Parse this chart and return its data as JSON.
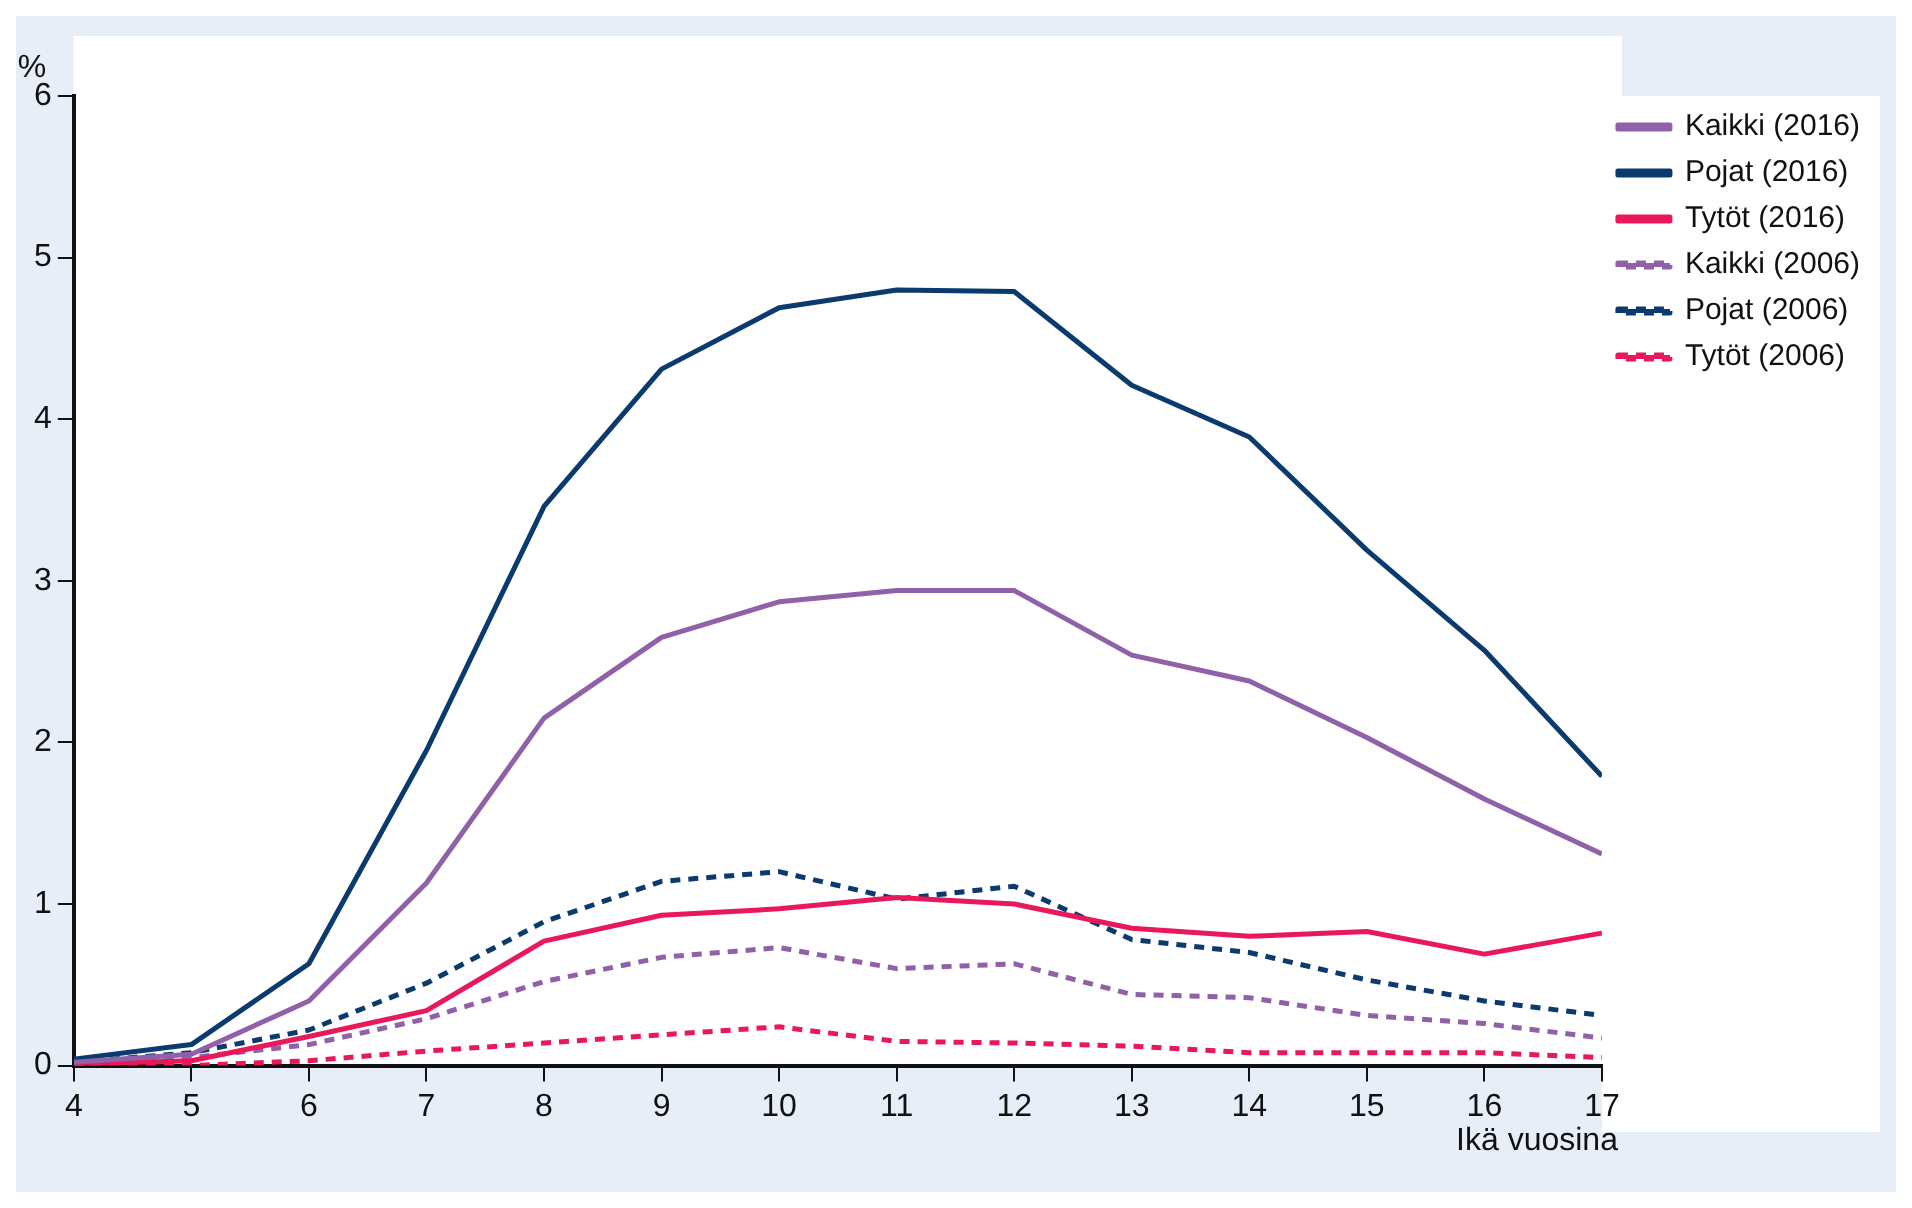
{
  "chart_data": {
    "type": "line",
    "xlabel": "Ikä vuosina",
    "ylabel": "%",
    "x": [
      4,
      5,
      6,
      7,
      8,
      9,
      10,
      11,
      12,
      13,
      14,
      15,
      16,
      17
    ],
    "xlim": [
      4,
      17
    ],
    "xticks": [
      4,
      5,
      6,
      7,
      8,
      9,
      10,
      11,
      12,
      13,
      14,
      15,
      16,
      17
    ],
    "ylim": [
      0,
      6
    ],
    "yticks": [
      0,
      1,
      2,
      3,
      4,
      5,
      6
    ],
    "grid": false,
    "legend": "right",
    "marker": "none",
    "series": [
      {
        "name": "Kaikki (2016)",
        "color": "#9060a8",
        "line_style": "solid",
        "values": [
          0.02,
          0.07,
          0.4,
          1.13,
          2.15,
          2.65,
          2.87,
          2.94,
          2.94,
          2.54,
          2.38,
          2.03,
          1.65,
          1.31
        ]
      },
      {
        "name": "Pojat (2016)",
        "color": "#0a3a6e",
        "line_style": "solid",
        "values": [
          0.04,
          0.13,
          0.63,
          1.95,
          3.46,
          4.31,
          4.69,
          4.8,
          4.79,
          4.21,
          3.89,
          3.19,
          2.57,
          1.79
        ]
      },
      {
        "name": "Tytöt (2016)",
        "color": "#e8185a",
        "line_style": "solid",
        "values": [
          0.01,
          0.03,
          0.18,
          0.34,
          0.77,
          0.93,
          0.97,
          1.04,
          1.0,
          0.85,
          0.8,
          0.83,
          0.69,
          0.82
        ]
      },
      {
        "name": "Kaikki (2006)",
        "color": "#9060a8",
        "line_style": "dashed",
        "values": [
          0.01,
          0.05,
          0.13,
          0.29,
          0.52,
          0.67,
          0.73,
          0.6,
          0.63,
          0.44,
          0.42,
          0.31,
          0.26,
          0.17
        ]
      },
      {
        "name": "Pojat (2006)",
        "color": "#0a3a6e",
        "line_style": "dashed",
        "values": [
          0.02,
          0.08,
          0.22,
          0.51,
          0.89,
          1.14,
          1.2,
          1.03,
          1.11,
          0.78,
          0.7,
          0.53,
          0.4,
          0.31
        ]
      },
      {
        "name": "Tytöt (2006)",
        "color": "#e8185a",
        "line_style": "dashed",
        "values": [
          0.0,
          0.0,
          0.03,
          0.09,
          0.14,
          0.19,
          0.24,
          0.15,
          0.14,
          0.12,
          0.08,
          0.08,
          0.08,
          0.05
        ]
      }
    ]
  }
}
